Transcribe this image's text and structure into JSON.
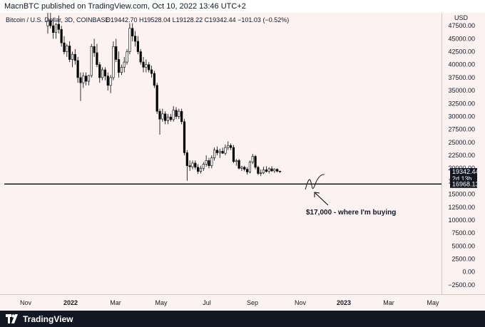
{
  "header": {
    "publish_line": "MacnBTC published on TradingView.com, Oct 10, 2022 13:46 UTC+2"
  },
  "footer": {
    "brand": "TradingView",
    "logo_icon": "tradingview-logo-icon"
  },
  "chart_data": {
    "type": "candlestick",
    "legend": {
      "symbol": "Bitcoin / U.S. Dollar, 3D, COINBASE",
      "ohlc": "O19442.70  H19528.04  L19128.22  C19342.44  −101.03 (−0.52%)"
    },
    "currency_label": "USD",
    "y_ticks": [
      "47500.00",
      "45000.00",
      "42500.00",
      "40000.00",
      "37500.00",
      "35000.00",
      "32500.00",
      "30000.00",
      "27500.00",
      "25000.00",
      "22500.00",
      "20000.00",
      "17500.00",
      "15000.00",
      "12500.00",
      "10000.00",
      "7500.00",
      "5000.00",
      "2500.00",
      "0.00",
      "−2500.00"
    ],
    "ylim": [
      -4300,
      50000
    ],
    "x_ticks": [
      "Nov",
      "2022",
      "Mar",
      "May",
      "Jul",
      "Sep",
      "Nov",
      "2023",
      "Mar",
      "May"
    ],
    "last_price_tag": {
      "value": "19342.44",
      "countdown": "2d 13h"
    },
    "line_tag": "16968.13",
    "horizontal_line_level": 16968.13,
    "annotation": "$17,000 - where I'm buying",
    "colors": {
      "up": "#ffffff",
      "down": "#000000",
      "outline": "#000000",
      "line": "#000000"
    },
    "candles": [
      {
        "o": 47500,
        "h": 51000,
        "l": 46000,
        "c": 48500
      },
      {
        "o": 48500,
        "h": 50000,
        "l": 47000,
        "c": 47500
      },
      {
        "o": 47500,
        "h": 49000,
        "l": 45000,
        "c": 46200
      },
      {
        "o": 46200,
        "h": 48000,
        "l": 45000,
        "c": 47800
      },
      {
        "o": 47800,
        "h": 49500,
        "l": 46000,
        "c": 46800
      },
      {
        "o": 46800,
        "h": 47500,
        "l": 43500,
        "c": 44200
      },
      {
        "o": 44200,
        "h": 45500,
        "l": 42000,
        "c": 42500
      },
      {
        "o": 42500,
        "h": 44000,
        "l": 41500,
        "c": 43600
      },
      {
        "o": 43600,
        "h": 44500,
        "l": 40500,
        "c": 41000
      },
      {
        "o": 41000,
        "h": 42500,
        "l": 39500,
        "c": 42000
      },
      {
        "o": 42000,
        "h": 43000,
        "l": 40000,
        "c": 40800
      },
      {
        "o": 40800,
        "h": 41500,
        "l": 36500,
        "c": 37500
      },
      {
        "o": 37500,
        "h": 38500,
        "l": 33000,
        "c": 36500
      },
      {
        "o": 36500,
        "h": 38500,
        "l": 35500,
        "c": 37800
      },
      {
        "o": 37800,
        "h": 38500,
        "l": 36000,
        "c": 36800
      },
      {
        "o": 36800,
        "h": 38000,
        "l": 36000,
        "c": 37900
      },
      {
        "o": 37900,
        "h": 44000,
        "l": 37500,
        "c": 43500
      },
      {
        "o": 43500,
        "h": 45000,
        "l": 41500,
        "c": 42300
      },
      {
        "o": 42300,
        "h": 44000,
        "l": 39500,
        "c": 40000
      },
      {
        "o": 40000,
        "h": 40500,
        "l": 36500,
        "c": 37500
      },
      {
        "o": 37500,
        "h": 39500,
        "l": 37000,
        "c": 39000
      },
      {
        "o": 39000,
        "h": 39500,
        "l": 37000,
        "c": 37800
      },
      {
        "o": 37800,
        "h": 38500,
        "l": 35000,
        "c": 36000
      },
      {
        "o": 36000,
        "h": 38000,
        "l": 34500,
        "c": 37500
      },
      {
        "o": 37500,
        "h": 44500,
        "l": 37000,
        "c": 43500
      },
      {
        "o": 43500,
        "h": 45000,
        "l": 40500,
        "c": 41000
      },
      {
        "o": 41000,
        "h": 42500,
        "l": 37500,
        "c": 38500
      },
      {
        "o": 38500,
        "h": 40000,
        "l": 38000,
        "c": 39500
      },
      {
        "o": 39500,
        "h": 41500,
        "l": 38500,
        "c": 40500
      },
      {
        "o": 40500,
        "h": 43000,
        "l": 40000,
        "c": 42500
      },
      {
        "o": 42500,
        "h": 48000,
        "l": 42000,
        "c": 47000
      },
      {
        "o": 47000,
        "h": 48000,
        "l": 44500,
        "c": 45500
      },
      {
        "o": 45500,
        "h": 46500,
        "l": 43500,
        "c": 44500
      },
      {
        "o": 44500,
        "h": 45500,
        "l": 42000,
        "c": 42500
      },
      {
        "o": 42500,
        "h": 43000,
        "l": 40000,
        "c": 40500
      },
      {
        "o": 40500,
        "h": 41500,
        "l": 38500,
        "c": 39500
      },
      {
        "o": 39500,
        "h": 41000,
        "l": 38500,
        "c": 40000
      },
      {
        "o": 40000,
        "h": 40500,
        "l": 38500,
        "c": 39000
      },
      {
        "o": 39000,
        "h": 39800,
        "l": 37500,
        "c": 38300
      },
      {
        "o": 38300,
        "h": 38800,
        "l": 35500,
        "c": 36000
      },
      {
        "o": 36000,
        "h": 36500,
        "l": 30500,
        "c": 31000
      },
      {
        "o": 31000,
        "h": 31500,
        "l": 26500,
        "c": 29500
      },
      {
        "o": 29500,
        "h": 31500,
        "l": 29000,
        "c": 30500
      },
      {
        "o": 30500,
        "h": 31000,
        "l": 28500,
        "c": 29200
      },
      {
        "o": 29200,
        "h": 30500,
        "l": 28500,
        "c": 29900
      },
      {
        "o": 29900,
        "h": 30500,
        "l": 29000,
        "c": 29400
      },
      {
        "o": 29400,
        "h": 32000,
        "l": 29000,
        "c": 31200
      },
      {
        "o": 31200,
        "h": 31800,
        "l": 29500,
        "c": 30000
      },
      {
        "o": 30000,
        "h": 31500,
        "l": 29500,
        "c": 31000
      },
      {
        "o": 31000,
        "h": 31500,
        "l": 28500,
        "c": 29000
      },
      {
        "o": 29000,
        "h": 29500,
        "l": 22500,
        "c": 23000
      },
      {
        "o": 23000,
        "h": 23500,
        "l": 17600,
        "c": 20500
      },
      {
        "o": 20500,
        "h": 21500,
        "l": 19500,
        "c": 20300
      },
      {
        "o": 20300,
        "h": 21500,
        "l": 19800,
        "c": 21000
      },
      {
        "o": 21000,
        "h": 21500,
        "l": 19800,
        "c": 20200
      },
      {
        "o": 20200,
        "h": 20800,
        "l": 18900,
        "c": 19400
      },
      {
        "o": 19400,
        "h": 20500,
        "l": 19000,
        "c": 20000
      },
      {
        "o": 20000,
        "h": 21200,
        "l": 19500,
        "c": 20800
      },
      {
        "o": 20800,
        "h": 22500,
        "l": 20300,
        "c": 21500
      },
      {
        "o": 21500,
        "h": 22000,
        "l": 20000,
        "c": 20500
      },
      {
        "o": 20500,
        "h": 22500,
        "l": 20000,
        "c": 22000
      },
      {
        "o": 22000,
        "h": 24000,
        "l": 21500,
        "c": 23500
      },
      {
        "o": 23500,
        "h": 24200,
        "l": 22500,
        "c": 23000
      },
      {
        "o": 23000,
        "h": 23800,
        "l": 22000,
        "c": 23300
      },
      {
        "o": 23300,
        "h": 24000,
        "l": 22800,
        "c": 22900
      },
      {
        "o": 22900,
        "h": 24600,
        "l": 22500,
        "c": 24000
      },
      {
        "o": 24000,
        "h": 25200,
        "l": 23500,
        "c": 24400
      },
      {
        "o": 24400,
        "h": 24800,
        "l": 23500,
        "c": 24000
      },
      {
        "o": 24000,
        "h": 24500,
        "l": 21000,
        "c": 21300
      },
      {
        "o": 21300,
        "h": 21800,
        "l": 20500,
        "c": 21500
      },
      {
        "o": 21500,
        "h": 21800,
        "l": 19800,
        "c": 20000
      },
      {
        "o": 20000,
        "h": 20500,
        "l": 19500,
        "c": 20200
      },
      {
        "o": 20200,
        "h": 20500,
        "l": 19400,
        "c": 19800
      },
      {
        "o": 19800,
        "h": 20200,
        "l": 18800,
        "c": 19300
      },
      {
        "o": 19300,
        "h": 21500,
        "l": 19000,
        "c": 21200
      },
      {
        "o": 21200,
        "h": 22800,
        "l": 20800,
        "c": 22300
      },
      {
        "o": 22300,
        "h": 22600,
        "l": 19800,
        "c": 20200
      },
      {
        "o": 20200,
        "h": 20500,
        "l": 18700,
        "c": 19000
      },
      {
        "o": 19000,
        "h": 19800,
        "l": 18500,
        "c": 19100
      },
      {
        "o": 19100,
        "h": 20300,
        "l": 18900,
        "c": 19700
      },
      {
        "o": 19700,
        "h": 20400,
        "l": 19200,
        "c": 19400
      },
      {
        "o": 19400,
        "h": 20200,
        "l": 19000,
        "c": 19900
      },
      {
        "o": 19900,
        "h": 20400,
        "l": 19300,
        "c": 19500
      },
      {
        "o": 19500,
        "h": 20000,
        "l": 19100,
        "c": 19800
      },
      {
        "o": 19800,
        "h": 20000,
        "l": 19200,
        "c": 19450
      },
      {
        "o": 19442.7,
        "h": 19528.04,
        "l": 19128.22,
        "c": 19342.44
      }
    ]
  }
}
